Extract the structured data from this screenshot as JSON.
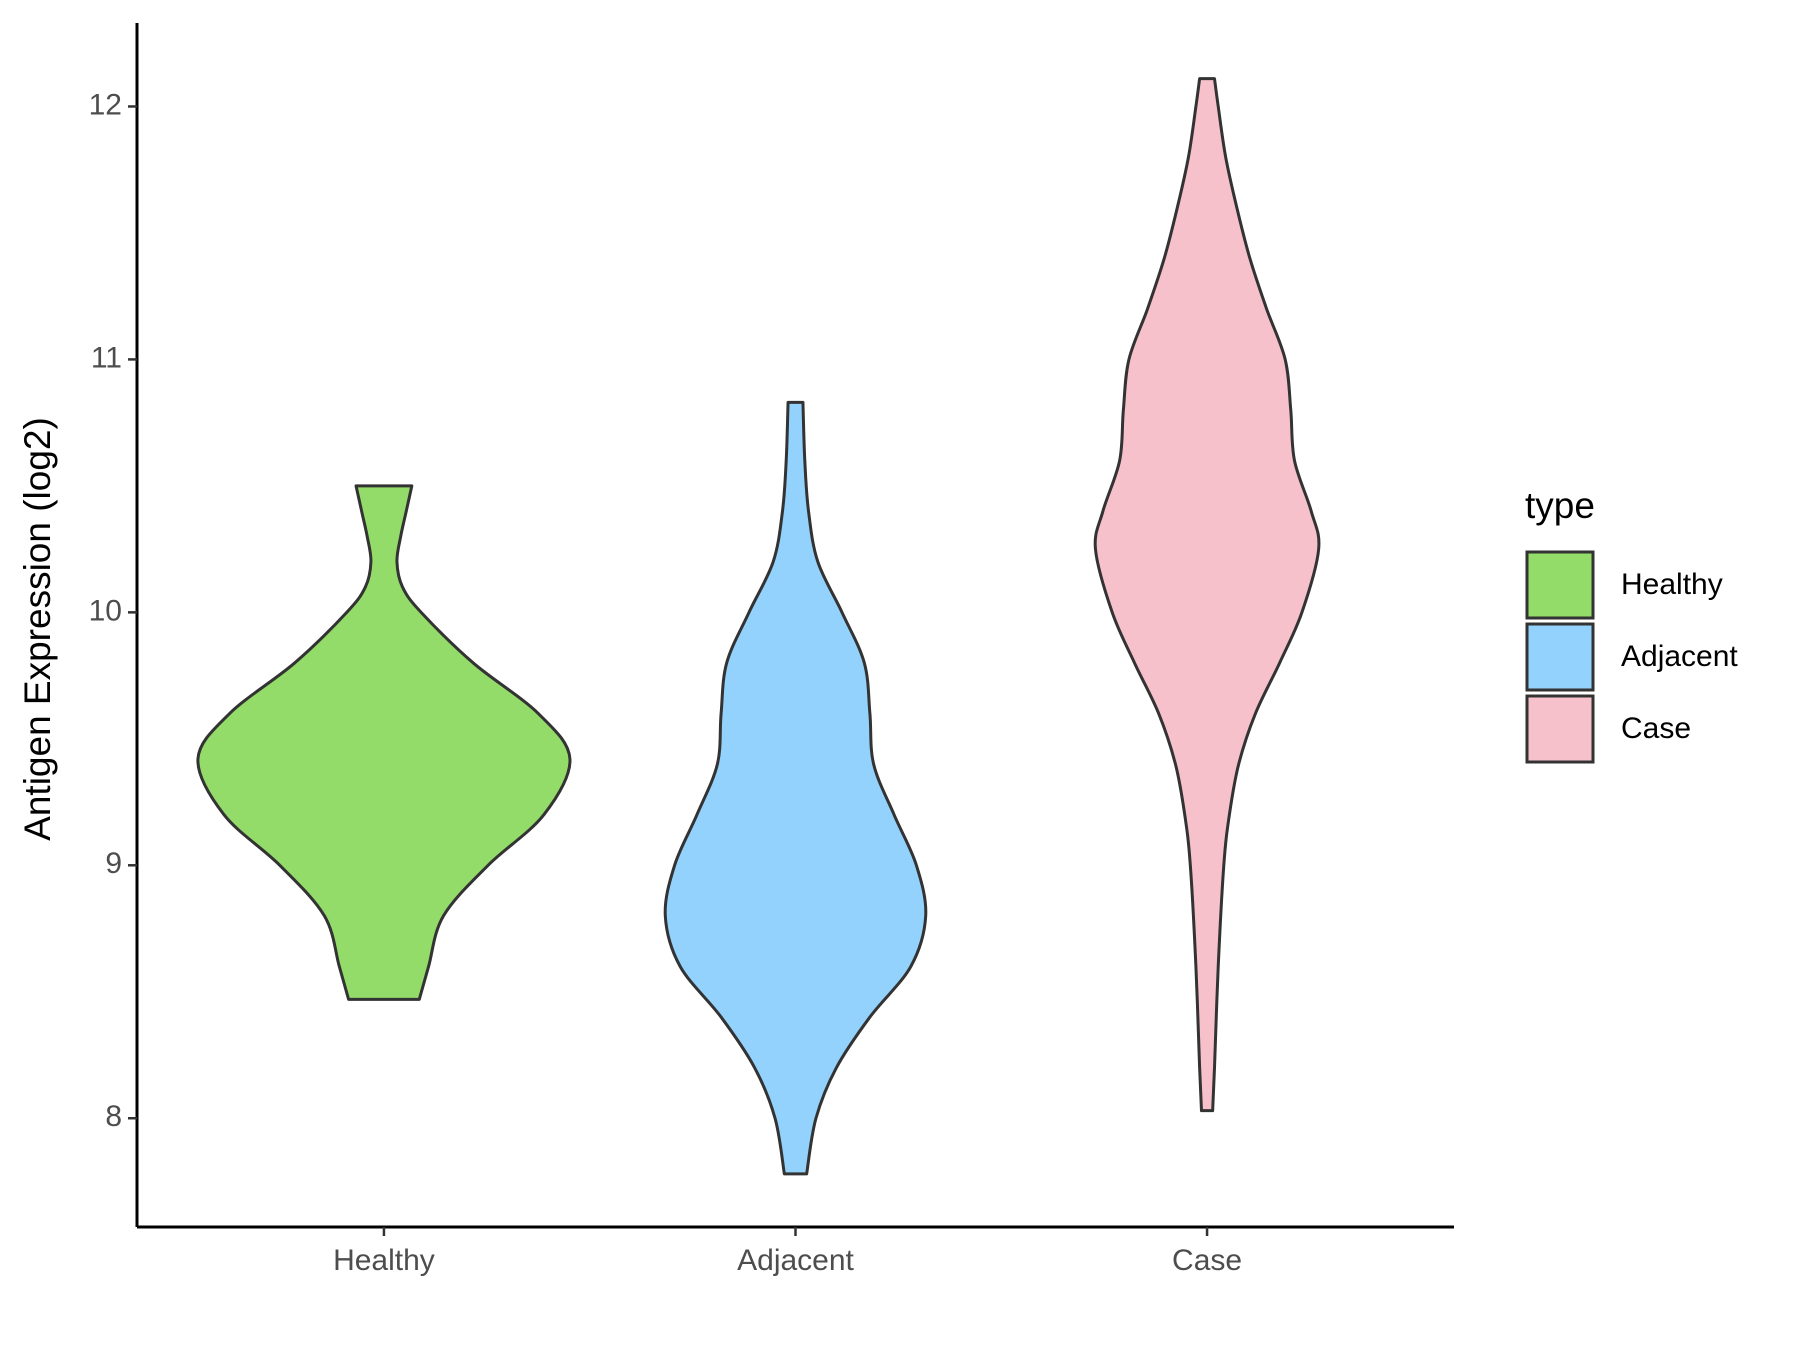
{
  "chart_data": {
    "type": "violin",
    "y_label": "Antigen Expression (log2)",
    "categories": [
      "Healthy",
      "Adjacent",
      "Case"
    ],
    "legend_title": "type",
    "ylim": [
      7.57,
      12.33
    ],
    "yticks": [
      8,
      9,
      10,
      11,
      12
    ],
    "series": [
      {
        "name": "Healthy",
        "color": "#93dc6a",
        "y": [
          10.5,
          10.4,
          10.3,
          10.2,
          10.1,
          10.0,
          9.8,
          9.6,
          9.42,
          9.2,
          9.0,
          8.8,
          8.6,
          8.47
        ],
        "density": [
          0.15,
          0.12,
          0.09,
          0.07,
          0.1,
          0.2,
          0.48,
          0.83,
          1.0,
          0.86,
          0.56,
          0.32,
          0.24,
          0.19
        ]
      },
      {
        "name": "Adjacent",
        "color": "#93d2fc",
        "y": [
          10.83,
          10.6,
          10.4,
          10.2,
          10.0,
          9.8,
          9.6,
          9.4,
          9.2,
          9.0,
          8.8,
          8.6,
          8.4,
          8.2,
          8.0,
          7.78
        ],
        "density": [
          0.04,
          0.05,
          0.07,
          0.12,
          0.25,
          0.37,
          0.4,
          0.42,
          0.53,
          0.65,
          0.7,
          0.62,
          0.4,
          0.22,
          0.11,
          0.06
        ]
      },
      {
        "name": "Case",
        "color": "#f7c1cc",
        "y": [
          12.11,
          12.0,
          11.8,
          11.6,
          11.4,
          11.2,
          11.0,
          10.8,
          10.6,
          10.4,
          10.25,
          10.0,
          9.8,
          9.6,
          9.4,
          9.2,
          9.0,
          8.6,
          8.2,
          8.03
        ],
        "density": [
          0.04,
          0.06,
          0.1,
          0.16,
          0.23,
          0.32,
          0.42,
          0.45,
          0.47,
          0.56,
          0.6,
          0.51,
          0.39,
          0.26,
          0.17,
          0.12,
          0.09,
          0.06,
          0.04,
          0.03
        ]
      }
    ]
  }
}
